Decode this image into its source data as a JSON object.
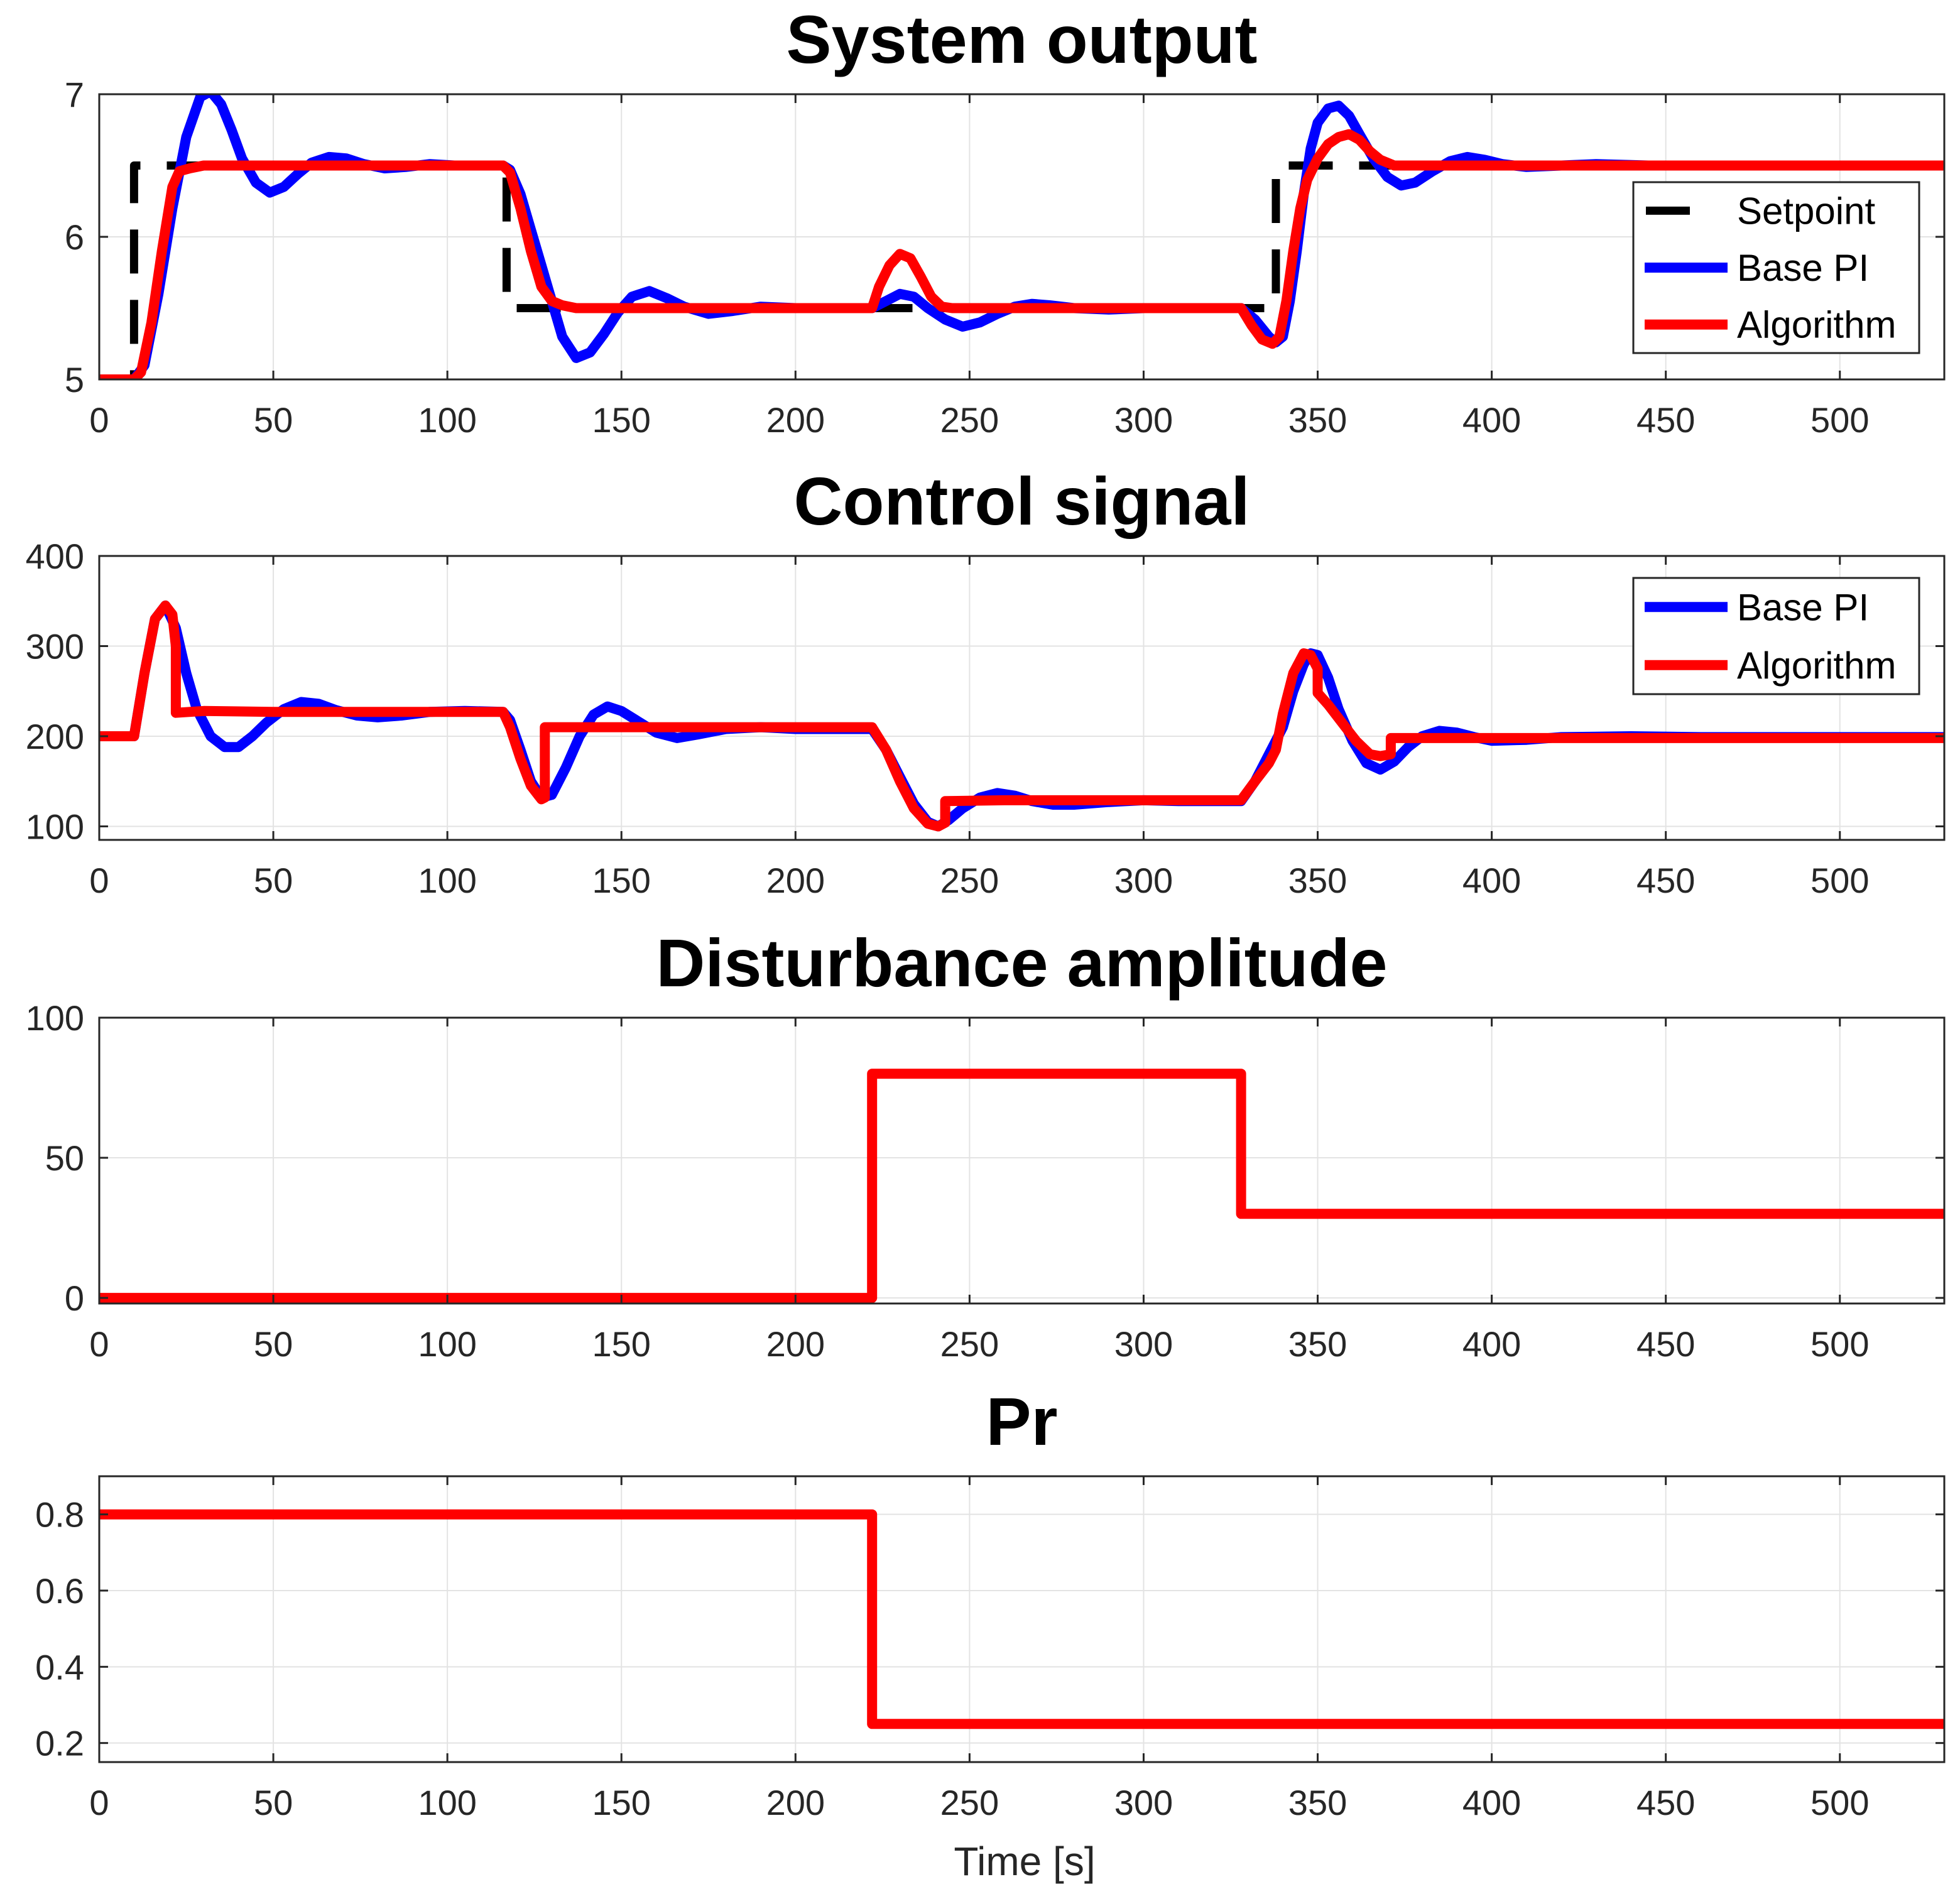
{
  "xlabel": "Time [s]",
  "colors": {
    "setpoint": "#000000",
    "base": "#0000ff",
    "algorithm": "#ff0000"
  },
  "chart_data": [
    {
      "type": "line",
      "title": "System output",
      "xlim": [
        0,
        530
      ],
      "ylim": [
        5,
        7
      ],
      "xticks": [
        0,
        50,
        100,
        150,
        200,
        250,
        300,
        350,
        400,
        450,
        500
      ],
      "yticks": [
        5,
        6,
        7
      ],
      "grid": true,
      "legend": {
        "position": "right",
        "entries": [
          "Setpoint",
          "Base PI",
          "Algorithm"
        ]
      },
      "series": [
        {
          "name": "Setpoint",
          "style": "dashed",
          "color": "#000000",
          "x": [
            0,
            10,
            10,
            117,
            117,
            338,
            338,
            530
          ],
          "y": [
            5,
            5,
            6.5,
            6.5,
            5.5,
            5.5,
            6.5,
            6.5
          ]
        },
        {
          "name": "Base PI",
          "style": "solid",
          "color": "#0000ff",
          "x": [
            0,
            10,
            13,
            17,
            21,
            25,
            29,
            32,
            35,
            38,
            41,
            45,
            49,
            53,
            57,
            61,
            66,
            71,
            76,
            82,
            88,
            95,
            102,
            110,
            116,
            118,
            121,
            124,
            127,
            130,
            133,
            137,
            141,
            145,
            149,
            153,
            158,
            163,
            168,
            175,
            182,
            190,
            200,
            210,
            222,
            226,
            230,
            234,
            238,
            243,
            248,
            253,
            258,
            263,
            268,
            273,
            280,
            290,
            300,
            310,
            320,
            328,
            332,
            336,
            338,
            340,
            342,
            344,
            346,
            348,
            350,
            353,
            356,
            359,
            362,
            366,
            370,
            374,
            378,
            383,
            388,
            393,
            398,
            403,
            410,
            420,
            430,
            445,
            460,
            480,
            530
          ],
          "y": [
            5,
            5,
            5.1,
            5.6,
            6.2,
            6.7,
            6.98,
            7.02,
            6.93,
            6.75,
            6.55,
            6.38,
            6.31,
            6.35,
            6.44,
            6.52,
            6.56,
            6.55,
            6.51,
            6.48,
            6.49,
            6.51,
            6.5,
            6.5,
            6.5,
            6.47,
            6.3,
            6.05,
            5.8,
            5.55,
            5.3,
            5.15,
            5.19,
            5.32,
            5.47,
            5.58,
            5.62,
            5.57,
            5.51,
            5.46,
            5.48,
            5.51,
            5.5,
            5.5,
            5.5,
            5.55,
            5.6,
            5.58,
            5.5,
            5.42,
            5.37,
            5.4,
            5.46,
            5.51,
            5.53,
            5.52,
            5.5,
            5.49,
            5.5,
            5.5,
            5.5,
            5.5,
            5.42,
            5.3,
            5.26,
            5.3,
            5.55,
            5.9,
            6.3,
            6.62,
            6.8,
            6.9,
            6.92,
            6.85,
            6.72,
            6.55,
            6.42,
            6.36,
            6.38,
            6.46,
            6.53,
            6.56,
            6.54,
            6.51,
            6.49,
            6.5,
            6.51,
            6.5,
            6.5,
            6.5,
            6.5
          ]
        },
        {
          "name": "Algorithm",
          "style": "solid",
          "color": "#ff0000",
          "x": [
            0,
            10,
            12,
            15,
            18,
            21,
            23,
            26,
            30,
            40,
            60,
            80,
            100,
            116,
            118,
            121,
            124,
            127,
            130,
            133,
            137,
            145,
            160,
            180,
            200,
            222,
            224,
            227,
            230,
            233,
            236,
            239,
            242,
            245,
            250,
            270,
            300,
            328,
            331,
            334,
            337,
            339,
            341,
            343,
            345,
            347,
            350,
            353,
            356,
            359,
            362,
            365,
            368,
            372,
            378,
            390,
            420,
            530
          ],
          "y": [
            5,
            5,
            5.05,
            5.4,
            5.9,
            6.35,
            6.46,
            6.48,
            6.5,
            6.5,
            6.5,
            6.5,
            6.5,
            6.5,
            6.45,
            6.2,
            5.9,
            5.65,
            5.55,
            5.52,
            5.5,
            5.5,
            5.5,
            5.5,
            5.5,
            5.5,
            5.65,
            5.8,
            5.88,
            5.85,
            5.72,
            5.58,
            5.51,
            5.5,
            5.5,
            5.5,
            5.5,
            5.5,
            5.38,
            5.28,
            5.25,
            5.3,
            5.55,
            5.9,
            6.2,
            6.4,
            6.55,
            6.65,
            6.7,
            6.72,
            6.68,
            6.6,
            6.54,
            6.5,
            6.5,
            6.5,
            6.5,
            6.5
          ]
        }
      ]
    },
    {
      "type": "line",
      "title": "Control signal",
      "xlim": [
        0,
        530
      ],
      "ylim": [
        85,
        400
      ],
      "xticks": [
        0,
        50,
        100,
        150,
        200,
        250,
        300,
        350,
        400,
        450,
        500
      ],
      "yticks": [
        100,
        200,
        300,
        400
      ],
      "grid": true,
      "legend": {
        "position": "top-right",
        "entries": [
          "Base PI",
          "Algorithm"
        ]
      },
      "series": [
        {
          "name": "Base PI",
          "style": "solid",
          "color": "#0000ff",
          "x": [
            0,
            10,
            13,
            16,
            19,
            22,
            25,
            28,
            32,
            36,
            40,
            44,
            48,
            53,
            58,
            63,
            68,
            74,
            80,
            87,
            95,
            105,
            116,
            118,
            121,
            124,
            127,
            130,
            134,
            138,
            142,
            146,
            150,
            155,
            160,
            166,
            172,
            180,
            190,
            200,
            222,
            226,
            230,
            234,
            238,
            241,
            244,
            248,
            253,
            258,
            263,
            268,
            274,
            280,
            290,
            300,
            310,
            328,
            332,
            336,
            340,
            343,
            346,
            348,
            350,
            353,
            356,
            360,
            364,
            368,
            372,
            376,
            380,
            385,
            390,
            395,
            400,
            410,
            420,
            440,
            460,
            530
          ],
          "y": [
            200,
            200,
            270,
            330,
            345,
            320,
            270,
            230,
            200,
            188,
            188,
            200,
            215,
            230,
            238,
            236,
            229,
            223,
            221,
            223,
            227,
            228,
            227,
            218,
            185,
            150,
            132,
            135,
            165,
            200,
            224,
            233,
            228,
            216,
            204,
            198,
            202,
            208,
            210,
            208,
            208,
            185,
            155,
            125,
            105,
            100,
            107,
            120,
            132,
            137,
            134,
            128,
            124,
            124,
            127,
            129,
            128,
            128,
            150,
            180,
            210,
            250,
            280,
            292,
            290,
            265,
            230,
            195,
            170,
            163,
            172,
            188,
            200,
            206,
            204,
            199,
            195,
            196,
            199,
            200,
            199,
            199
          ]
        },
        {
          "name": "Algorithm",
          "style": "solid",
          "color": "#ff0000",
          "x": [
            0,
            10,
            13,
            16,
            19,
            21,
            22,
            22,
            30,
            50,
            80,
            100,
            116,
            118,
            121,
            124,
            127,
            128,
            128,
            130,
            150,
            180,
            200,
            222,
            226,
            230,
            234,
            238,
            241,
            243,
            243,
            260,
            300,
            328,
            332,
            336,
            338,
            340,
            343,
            346,
            348,
            350,
            350,
            353,
            357,
            361,
            365,
            368,
            371,
            371,
            400,
            530
          ],
          "y": [
            200,
            200,
            270,
            330,
            345,
            335,
            300,
            226,
            228,
            227,
            227,
            227,
            227,
            210,
            175,
            145,
            130,
            132,
            210,
            210,
            210,
            210,
            210,
            210,
            185,
            150,
            120,
            103,
            100,
            104,
            128,
            129,
            129,
            129,
            150,
            170,
            185,
            225,
            270,
            292,
            290,
            275,
            248,
            235,
            215,
            195,
            180,
            178,
            180,
            198,
            198,
            198
          ]
        }
      ]
    },
    {
      "type": "line",
      "title": "Disturbance amplitude",
      "xlim": [
        0,
        530
      ],
      "ylim": [
        -2,
        100
      ],
      "xticks": [
        0,
        50,
        100,
        150,
        200,
        250,
        300,
        350,
        400,
        450,
        500
      ],
      "yticks": [
        0,
        50,
        100
      ],
      "grid": true,
      "series": [
        {
          "name": "Disturbance",
          "style": "solid",
          "color": "#ff0000",
          "x": [
            0,
            222,
            222,
            328,
            328,
            530
          ],
          "y": [
            0,
            0,
            80,
            80,
            30,
            30
          ]
        }
      ]
    },
    {
      "type": "line",
      "title": "Pr",
      "xlim": [
        0,
        530
      ],
      "ylim": [
        0.15,
        0.9
      ],
      "xticks": [
        0,
        50,
        100,
        150,
        200,
        250,
        300,
        350,
        400,
        450,
        500
      ],
      "yticks": [
        0.2,
        0.4,
        0.6,
        0.8
      ],
      "grid": true,
      "series": [
        {
          "name": "Pr",
          "style": "solid",
          "color": "#ff0000",
          "x": [
            0,
            222,
            222,
            530
          ],
          "y": [
            0.8,
            0.8,
            0.25,
            0.25
          ]
        }
      ]
    }
  ]
}
